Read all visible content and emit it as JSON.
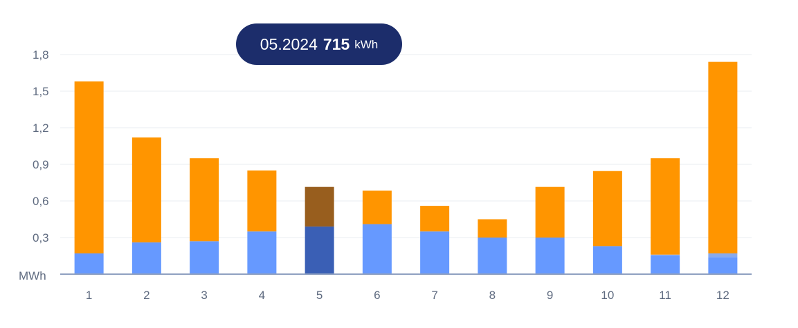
{
  "tooltip": {
    "period": "05.2024",
    "value": "715",
    "unit": "kWh"
  },
  "colors": {
    "grid_import": "#6699ff",
    "solar": "#ff9500",
    "grid_import_highlight": "#3a5fb5",
    "solar_highlight": "#985e1e",
    "battery": "#88aaee",
    "tooltip_bg": "#1c2d6b",
    "axis_text": "#5f6b80",
    "gridline": "#e9ecf2",
    "baseline": "#8fa0c0"
  },
  "chart_data": {
    "type": "bar",
    "stacked": true,
    "categories": [
      "1",
      "2",
      "3",
      "4",
      "5",
      "6",
      "7",
      "8",
      "9",
      "10",
      "11",
      "12"
    ],
    "series": [
      {
        "color": "#6699ff",
        "values": [
          0.17,
          0.26,
          0.27,
          0.35,
          0.39,
          0.41,
          0.35,
          0.3,
          0.3,
          0.23,
          0.15,
          0.14
        ]
      },
      {
        "color": "#88aaee",
        "values": [
          0,
          0,
          0,
          0,
          0,
          0,
          0,
          0,
          0,
          0,
          0.01,
          0.03
        ]
      },
      {
        "color": "#ff9500",
        "values": [
          1.41,
          0.86,
          0.68,
          0.5,
          0.325,
          0.275,
          0.21,
          0.15,
          0.415,
          0.615,
          0.79,
          1.57
        ]
      }
    ],
    "highlight_index": 4,
    "unit": "MWh",
    "ylim": [
      0,
      1.8
    ],
    "yticks": [
      "0,3",
      "0,6",
      "0,9",
      "1,2",
      "1,5",
      "1,8"
    ],
    "grid": true
  }
}
